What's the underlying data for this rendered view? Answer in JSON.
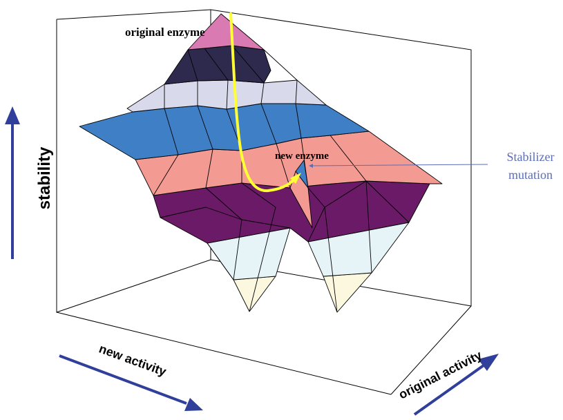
{
  "labels": {
    "original_enzyme": "original enzyme",
    "new_enzyme": "new enzyme",
    "stabilizer_line1": "Stabilizer",
    "stabilizer_line2": "mutation",
    "stability_axis": "stability",
    "new_activity_axis": "new activity",
    "original_activity_axis": "original activity"
  },
  "colors": {
    "axis_arrow": "#2f3f9a",
    "trajectory": "#ffff33",
    "annotation": "#5a6db8",
    "band_pink": "#d97ab3",
    "band_dark_navy": "#2e2a4e",
    "band_light_lavender": "#d8daec",
    "band_steel_blue": "#3f7fc6",
    "band_salmon": "#f39a93",
    "band_purple": "#6a1a66",
    "band_pale_cyan": "#e6f3f7",
    "band_cream": "#fbf8df"
  }
}
